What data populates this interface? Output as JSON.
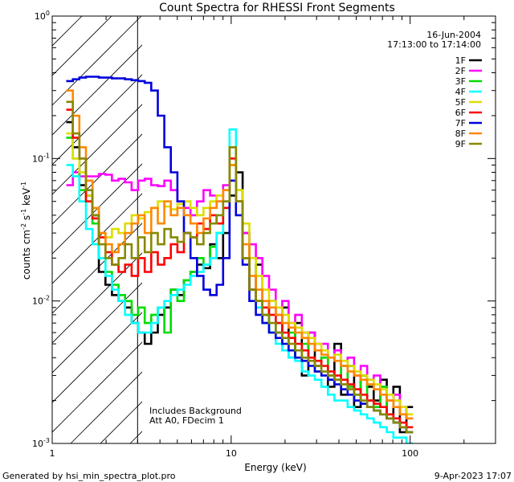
{
  "chart_data": {
    "type": "line",
    "title": "Count Spectra for RHESSI Front Segments",
    "xlabel": "Energy (keV)",
    "ylabel_main": "counts cm",
    "ylabel_sup1": "-2",
    "ylabel_mid": " s",
    "ylabel_sup2": "-1",
    "ylabel_end": " keV",
    "ylabel_sup3": "-1",
    "xscale": "log",
    "yscale": "log",
    "xlim": [
      1,
      300
    ],
    "ylim": [
      0.001,
      1
    ],
    "x_ticks": [
      {
        "value": 1,
        "label": "1"
      },
      {
        "value": 10,
        "label": "10"
      },
      {
        "value": 100,
        "label": "100"
      }
    ],
    "y_ticks": [
      {
        "value": 0.001,
        "base": "10",
        "exp": "-3"
      },
      {
        "value": 0.01,
        "base": "10",
        "exp": "-2"
      },
      {
        "value": 0.1,
        "base": "10",
        "exp": "-1"
      },
      {
        "value": 1,
        "base": "10",
        "exp": "0"
      }
    ],
    "hatched_region_max_energy": 3,
    "date": "16-Jun-2004",
    "time_range": "17:13:00 to 17:14:00",
    "annotation_line1": "Includes Background",
    "annotation_line2": "Att A0, FDecim 1",
    "series": [
      {
        "name": "1F",
        "color": "#000000",
        "values": [
          0.18,
          0.12,
          0.065,
          0.055,
          0.04,
          0.016,
          0.013,
          0.011,
          0.01,
          0.009,
          0.007,
          0.006,
          0.005,
          0.006,
          0.008,
          0.009,
          0.012,
          0.011,
          0.014,
          0.016,
          0.018,
          0.017,
          0.025,
          0.02,
          0.03,
          0.055,
          0.08,
          0.03,
          0.012,
          0.018,
          0.008,
          0.01,
          0.006,
          0.009,
          0.004,
          0.007,
          0.003,
          0.006,
          0.0035,
          0.004,
          0.0025,
          0.005,
          0.0022,
          0.0035,
          0.0018,
          0.003,
          0.0025,
          0.002,
          0.0028,
          0.0015,
          0.0025,
          0.0012,
          0.0018
        ]
      },
      {
        "name": "2F",
        "color": "#ff00ff",
        "values": [
          0.065,
          0.08,
          0.075,
          0.075,
          0.075,
          0.078,
          0.077,
          0.07,
          0.072,
          0.068,
          0.06,
          0.07,
          0.072,
          0.065,
          0.064,
          0.07,
          0.06,
          0.05,
          0.045,
          0.04,
          0.05,
          0.06,
          0.055,
          0.05,
          0.065,
          0.07,
          0.05,
          0.03,
          0.025,
          0.02,
          0.015,
          0.012,
          0.008,
          0.01,
          0.007,
          0.008,
          0.006,
          0.006,
          0.005,
          0.005,
          0.004,
          0.0045,
          0.0035,
          0.004,
          0.003,
          0.0035,
          0.0028,
          0.003,
          0.0025,
          0.002,
          0.0022,
          0.0018,
          0.0015
        ]
      },
      {
        "name": "3F",
        "color": "#00dd00",
        "values": [
          0.14,
          0.1,
          0.06,
          0.05,
          0.035,
          0.02,
          0.016,
          0.013,
          0.011,
          0.01,
          0.008,
          0.009,
          0.007,
          0.008,
          0.009,
          0.006,
          0.012,
          0.01,
          0.014,
          0.016,
          0.02,
          0.018,
          0.024,
          0.03,
          0.045,
          0.12,
          0.06,
          0.02,
          0.012,
          0.01,
          0.008,
          0.006,
          0.007,
          0.005,
          0.006,
          0.004,
          0.005,
          0.004,
          0.0032,
          0.004,
          0.003,
          0.0028,
          0.0035,
          0.0025,
          0.0022,
          0.003,
          0.002,
          0.0018,
          0.0025,
          0.0016,
          0.0014,
          0.0013,
          0.0012
        ]
      },
      {
        "name": "4F",
        "color": "#00ffff",
        "values": [
          0.09,
          0.075,
          0.05,
          0.032,
          0.025,
          0.02,
          0.015,
          0.012,
          0.01,
          0.008,
          0.007,
          0.006,
          0.006,
          0.007,
          0.009,
          0.01,
          0.011,
          0.012,
          0.013,
          0.015,
          0.016,
          0.018,
          0.02,
          0.03,
          0.05,
          0.16,
          0.05,
          0.02,
          0.012,
          0.009,
          0.007,
          0.006,
          0.005,
          0.0045,
          0.004,
          0.0038,
          0.0032,
          0.003,
          0.0028,
          0.0025,
          0.0022,
          0.002,
          0.002,
          0.0018,
          0.0017,
          0.0016,
          0.0015,
          0.0014,
          0.0013,
          0.0012,
          0.0011,
          0.0011,
          0.001
        ]
      },
      {
        "name": "5F",
        "color": "#dddd00",
        "values": [
          0.15,
          0.1,
          0.08,
          0.055,
          0.045,
          0.03,
          0.028,
          0.032,
          0.03,
          0.035,
          0.04,
          0.038,
          0.042,
          0.045,
          0.05,
          0.046,
          0.044,
          0.048,
          0.05,
          0.045,
          0.04,
          0.045,
          0.05,
          0.055,
          0.06,
          0.09,
          0.06,
          0.035,
          0.02,
          0.015,
          0.012,
          0.01,
          0.009,
          0.008,
          0.007,
          0.0065,
          0.006,
          0.0055,
          0.005,
          0.0045,
          0.004,
          0.0042,
          0.0038,
          0.0035,
          0.0032,
          0.003,
          0.0028,
          0.0026,
          0.0024,
          0.0022,
          0.002,
          0.0018,
          0.0016
        ]
      },
      {
        "name": "6F",
        "color": "#ff0000",
        "values": [
          0.22,
          0.14,
          0.1,
          0.05,
          0.038,
          0.028,
          0.022,
          0.018,
          0.016,
          0.018,
          0.015,
          0.02,
          0.016,
          0.022,
          0.018,
          0.02,
          0.025,
          0.022,
          0.03,
          0.028,
          0.035,
          0.032,
          0.04,
          0.035,
          0.045,
          0.1,
          0.05,
          0.02,
          0.012,
          0.01,
          0.009,
          0.008,
          0.007,
          0.006,
          0.0055,
          0.005,
          0.0045,
          0.004,
          0.0038,
          0.0035,
          0.0032,
          0.003,
          0.0028,
          0.0026,
          0.0024,
          0.0022,
          0.002,
          0.0019,
          0.0018,
          0.0016,
          0.0015,
          0.0014,
          0.0013
        ]
      },
      {
        "name": "7F",
        "color": "#0000dd",
        "values": [
          0.35,
          0.36,
          0.37,
          0.375,
          0.375,
          0.37,
          0.37,
          0.365,
          0.365,
          0.36,
          0.355,
          0.35,
          0.34,
          0.3,
          0.2,
          0.12,
          0.08,
          0.05,
          0.03,
          0.02,
          0.015,
          0.012,
          0.011,
          0.013,
          0.02,
          0.07,
          0.04,
          0.018,
          0.01,
          0.008,
          0.007,
          0.006,
          0.0055,
          0.005,
          0.0045,
          0.004,
          0.0038,
          0.0035,
          0.0032,
          0.003,
          0.0028,
          0.0026,
          0.0024,
          0.0022,
          0.002,
          0.0019,
          0.0018,
          0.0017,
          0.0016,
          0.0015,
          0.0014,
          0.0013,
          0.0012
        ]
      },
      {
        "name": "8F",
        "color": "#ff8800",
        "values": [
          0.3,
          0.2,
          0.12,
          0.07,
          0.045,
          0.03,
          0.025,
          0.022,
          0.025,
          0.03,
          0.035,
          0.04,
          0.03,
          0.045,
          0.035,
          0.05,
          0.04,
          0.045,
          0.04,
          0.035,
          0.03,
          0.038,
          0.045,
          0.05,
          0.06,
          0.09,
          0.05,
          0.025,
          0.015,
          0.012,
          0.01,
          0.009,
          0.008,
          0.007,
          0.0065,
          0.006,
          0.0055,
          0.005,
          0.0045,
          0.0042,
          0.004,
          0.0038,
          0.0035,
          0.0032,
          0.003,
          0.0028,
          0.0026,
          0.0024,
          0.0022,
          0.002,
          0.0018,
          0.0016,
          0.0015
        ]
      },
      {
        "name": "9F",
        "color": "#888800",
        "values": [
          0.25,
          0.15,
          0.1,
          0.06,
          0.04,
          0.025,
          0.02,
          0.018,
          0.02,
          0.025,
          0.02,
          0.028,
          0.022,
          0.03,
          0.025,
          0.032,
          0.028,
          0.026,
          0.03,
          0.028,
          0.025,
          0.03,
          0.035,
          0.04,
          0.05,
          0.12,
          0.05,
          0.02,
          0.012,
          0.01,
          0.008,
          0.007,
          0.006,
          0.0055,
          0.005,
          0.0045,
          0.004,
          0.0038,
          0.0035,
          0.0032,
          0.003,
          0.0028,
          0.0026,
          0.0024,
          0.0022,
          0.002,
          0.0018,
          0.0017,
          0.0016,
          0.0015,
          0.0014,
          0.0013,
          0.0012
        ]
      }
    ],
    "x": [
      1.25,
      1.36,
      1.48,
      1.61,
      1.75,
      1.9,
      2.07,
      2.25,
      2.45,
      2.66,
      2.9,
      3.15,
      3.43,
      3.73,
      4.06,
      4.41,
      4.8,
      5.22,
      5.68,
      6.18,
      6.72,
      7.31,
      7.95,
      8.65,
      9.4,
      10.2,
      11.1,
      12.1,
      13.2,
      14.3,
      15.6,
      17,
      18.5,
      20.1,
      21.8,
      23.8,
      25.9,
      28.1,
      30.6,
      33.3,
      36.2,
      39.4,
      42.9,
      46.6,
      50.7,
      55.2,
      60,
      65.3,
      71,
      77.3,
      84.1,
      91.4,
      99.5
    ]
  },
  "footer": {
    "generated_by": "Generated by hsi_min_spectra_plot.pro",
    "generated_on": "9-Apr-2023 17:07"
  }
}
